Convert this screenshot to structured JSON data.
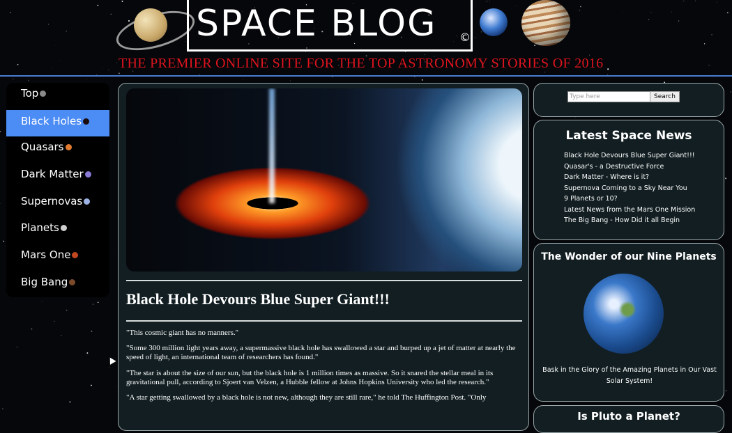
{
  "header": {
    "logo_text": "SPACE BLOG",
    "logo_copyright": "©",
    "tagline": "THE PREMIER ONLINE SITE FOR THE TOP ASTRONOMY STORIES OF 2016",
    "tagline_color": "#e0141e"
  },
  "nav": {
    "items": [
      {
        "label": "Top",
        "dot_color": "#8a8a8a"
      },
      {
        "label": "Black Holes",
        "dot_color": "#1a0a0a"
      },
      {
        "label": "Quasars",
        "dot_color": "#e07a30"
      },
      {
        "label": "Dark Matter",
        "dot_color": "#8a7ad8"
      },
      {
        "label": "Supernovas",
        "dot_color": "#9fb4e6"
      },
      {
        "label": "Planets",
        "dot_color": "#cfcfcf"
      },
      {
        "label": "Mars One",
        "dot_color": "#c2461f"
      },
      {
        "label": "Big Bang",
        "dot_color": "#7a4a2a"
      }
    ],
    "active_index": 1,
    "active_color": "#4b8cf5"
  },
  "article": {
    "title": "Black Hole Devours Blue Super Giant!!!",
    "paragraphs": [
      "\"This cosmic giant has no manners.\"",
      "\"Some 300 million light years away, a supermassive black hole has swallowed a star and burped up a jet of matter at nearly the speed of light, an international team of researchers has found.\"",
      "\"The star is about the size of our sun, but the black hole is 1 million times as massive. So it snared the stellar meal in its gravitational pull, according to Sjoert van Velzen, a Hubble fellow at Johns Hopkins University who led the research.\"",
      "\"A star getting swallowed by a black hole is not new, although they are still rare,\" he told The Huffington Post. \"Only"
    ]
  },
  "search": {
    "placeholder": "Type here",
    "button_label": "Search"
  },
  "news": {
    "title": "Latest Space News",
    "items": [
      "Black Hole Devours Blue Super Giant!!!",
      "Quasar's - a Destructive Force",
      "Dark Matter - Where is it?",
      "Supernova Coming to a Sky Near You",
      "9 Planets or 10?",
      "Latest News from the Mars One Mission",
      "The Big Bang - How Did it all Begin"
    ]
  },
  "planets": {
    "title": "The Wonder of our Nine Planets",
    "caption": "Bask in the Glory of the Amazing Planets in Our Vast Solar System!"
  },
  "extra": {
    "title": "Is Pluto a Planet?"
  },
  "colors": {
    "panel_bg": "#121e22",
    "panel_border": "#9aa7aa",
    "header_rule": "#4a7bd0"
  }
}
